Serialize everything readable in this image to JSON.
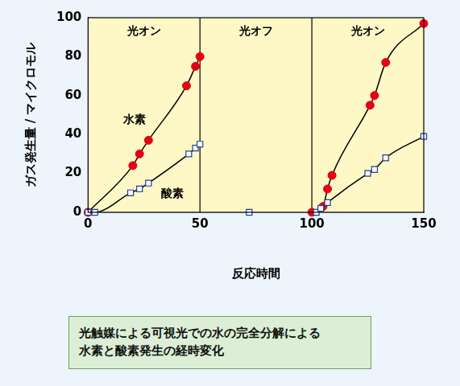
{
  "chart_data": {
    "type": "line",
    "x_label": "反応時間",
    "y_label": "ガス発生量 / マイクロモル",
    "xlim": [
      0,
      150
    ],
    "xticks": [
      0,
      50,
      100,
      150
    ],
    "ylim": [
      0,
      100
    ],
    "yticks": [
      0,
      20,
      40,
      60,
      80,
      100
    ],
    "grid": false,
    "regions": [
      {
        "label": "光オン",
        "from": 0,
        "to": 50
      },
      {
        "label": "光オフ",
        "from": 50,
        "to": 100
      },
      {
        "label": "光オン",
        "from": 100,
        "to": 150
      }
    ],
    "series": [
      {
        "name": "水素",
        "color": "#e60012",
        "marker": "circle",
        "x": [
          0,
          20,
          23,
          27,
          44,
          48,
          50,
          null,
          100,
          105,
          107,
          109,
          126,
          128,
          133,
          150
        ],
        "values": [
          0,
          24,
          30,
          37,
          65,
          75,
          80,
          null,
          0,
          3,
          12,
          19,
          55,
          60,
          77,
          97
        ]
      },
      {
        "name": "酸素",
        "color": "#1f3f8f",
        "marker": "square-open",
        "x": [
          0,
          3,
          19,
          23,
          27,
          45,
          48,
          50,
          null,
          72,
          null,
          102,
          104,
          107,
          125,
          128,
          133,
          150
        ],
        "values": [
          0,
          0,
          10,
          12,
          15,
          30,
          33,
          35,
          null,
          0,
          null,
          0,
          2,
          5,
          20,
          22,
          28,
          39
        ]
      }
    ],
    "caption": [
      "光触媒による可視光での水の完全分解による",
      "水素と酸素発生の経時変化"
    ]
  }
}
